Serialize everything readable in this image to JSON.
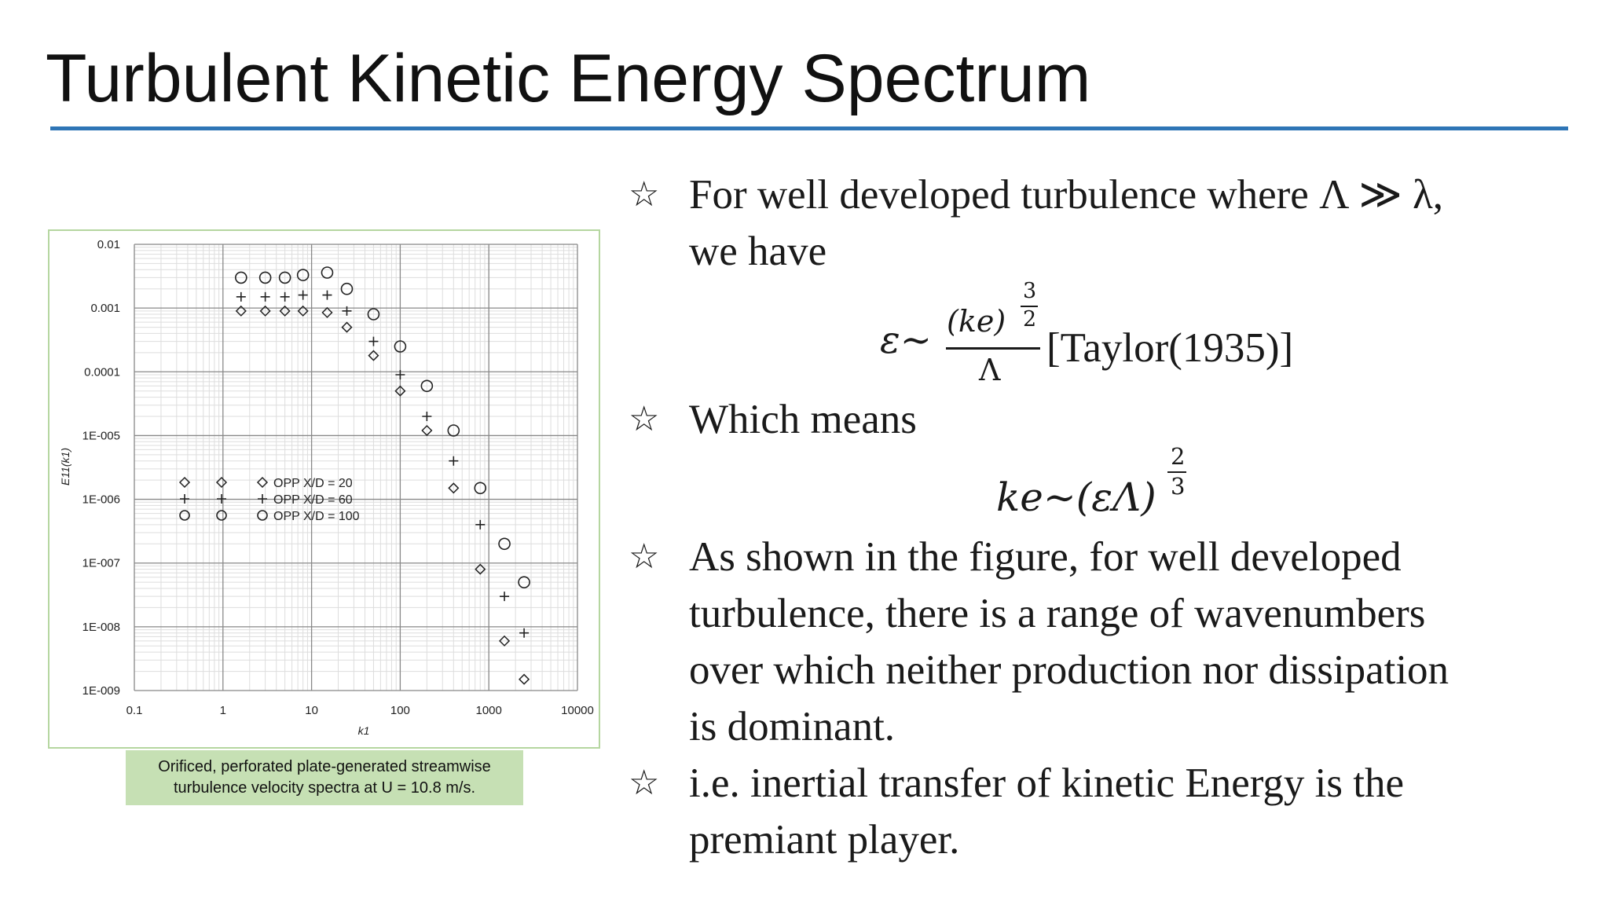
{
  "title": "Turbulent Kinetic Energy Spectrum",
  "colors": {
    "title_rule": "#2e75b6",
    "caption_bg": "#c6e0b4",
    "figure_border": "#b5d6a0"
  },
  "bullet_icon": "outlined-star-icon",
  "bullets": {
    "b1_line1": "For well developed turbulence where Λ ≫  λ,",
    "b1_line2": "we have",
    "b2": "Which means",
    "b3_line1": "As shown in the figure, for well developed",
    "b3_line2": "turbulence, there is a range of wavenumbers",
    "b3_line3": "over which neither production nor dissipation",
    "b3_line4": "is dominant.",
    "b4_line1": "i.e. inertial transfer of kinetic Energy is the",
    "b4_line2": "premiant player."
  },
  "equations": {
    "eq1": {
      "lhs": "ε∼",
      "num_base": "(ke)",
      "num_exp_num": "3",
      "num_exp_den": "2",
      "den": "Λ",
      "citation": "[Taylor(1935)]"
    },
    "eq2": {
      "lhs": "ke∼(εΛ)",
      "exp_num": "2",
      "exp_den": "3"
    }
  },
  "caption": {
    "line1": "Orificed, perforated plate-generated streamwise",
    "line2": "turbulence velocity spectra at U = 10.8 m/s."
  },
  "chart_data": {
    "type": "scatter",
    "title": "",
    "xlabel": "k1",
    "ylabel": "E11(k1)",
    "xscale": "log",
    "yscale": "log",
    "xlim": [
      0.1,
      10000
    ],
    "ylim": [
      1e-09,
      0.01
    ],
    "x_ticks": [
      "0.1",
      "1",
      "10",
      "100",
      "1000",
      "10000"
    ],
    "y_ticks": [
      "0.01",
      "0.001",
      "0.0001",
      "1E-005",
      "1E-006",
      "1E-007",
      "1E-008",
      "1E-009"
    ],
    "grid": true,
    "legend_position": "center-left",
    "series": [
      {
        "name": "OPP X/D = 20",
        "marker": "diamond",
        "points": [
          [
            1.6,
            0.0009
          ],
          [
            3,
            0.0009
          ],
          [
            5,
            0.0009
          ],
          [
            8,
            0.0009
          ],
          [
            15,
            0.00085
          ],
          [
            25,
            0.0005
          ],
          [
            50,
            0.00018
          ],
          [
            100,
            5e-05
          ],
          [
            200,
            1.2e-05
          ],
          [
            400,
            1.5e-06
          ],
          [
            800,
            8e-08
          ],
          [
            1500,
            6e-09
          ],
          [
            2500,
            1.5e-09
          ]
        ]
      },
      {
        "name": "OPP X/D = 60",
        "marker": "plus",
        "points": [
          [
            1.6,
            0.0015
          ],
          [
            3,
            0.0015
          ],
          [
            5,
            0.0015
          ],
          [
            8,
            0.0016
          ],
          [
            15,
            0.0016
          ],
          [
            25,
            0.0009
          ],
          [
            50,
            0.0003
          ],
          [
            100,
            9e-05
          ],
          [
            200,
            2e-05
          ],
          [
            400,
            4e-06
          ],
          [
            800,
            4e-07
          ],
          [
            1500,
            3e-08
          ],
          [
            2500,
            8e-09
          ]
        ]
      },
      {
        "name": "OPP X/D = 100",
        "marker": "circle",
        "points": [
          [
            1.6,
            0.003
          ],
          [
            3,
            0.003
          ],
          [
            5,
            0.003
          ],
          [
            8,
            0.0033
          ],
          [
            15,
            0.0036
          ],
          [
            25,
            0.002
          ],
          [
            50,
            0.0008
          ],
          [
            100,
            0.00025
          ],
          [
            200,
            6e-05
          ],
          [
            400,
            1.2e-05
          ],
          [
            800,
            1.5e-06
          ],
          [
            1500,
            2e-07
          ],
          [
            2500,
            5e-08
          ]
        ]
      }
    ]
  }
}
